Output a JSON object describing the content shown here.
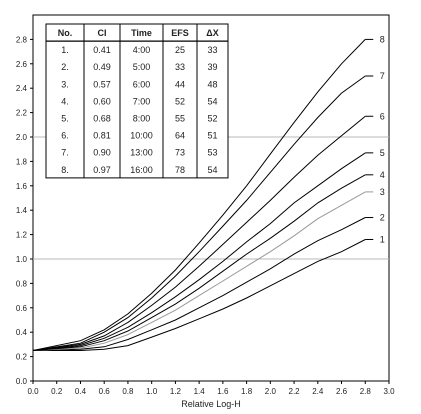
{
  "chart_data": {
    "type": "line",
    "xlabel": "Relative Log-H",
    "ylabel": "",
    "xlim": [
      0.0,
      3.0
    ],
    "ylim": [
      0.0,
      3.0
    ],
    "x_ticks": [
      "0.0",
      "0.2",
      "0.4",
      "0.6",
      "0.8",
      "1.0",
      "1.2",
      "1.4",
      "1.6",
      "1.8",
      "2.0",
      "2.2",
      "2.4",
      "2.6",
      "2.8",
      "3.0"
    ],
    "y_ticks": [
      "0.0",
      "0.2",
      "0.4",
      "0.6",
      "0.8",
      "1.0",
      "1.2",
      "1.4",
      "1.6",
      "1.8",
      "2.0",
      "2.2",
      "2.4",
      "2.6",
      "2.8"
    ],
    "reference_lines_y": [
      1.0,
      2.0
    ],
    "grid": false,
    "series": [
      {
        "name": "1",
        "color": "#000000",
        "x": [
          0.0,
          0.4,
          0.6,
          0.8,
          1.0,
          1.2,
          1.4,
          1.6,
          1.8,
          2.0,
          2.2,
          2.4,
          2.6,
          2.8
        ],
        "values": [
          0.25,
          0.25,
          0.26,
          0.29,
          0.36,
          0.43,
          0.51,
          0.59,
          0.68,
          0.78,
          0.88,
          0.98,
          1.06,
          1.16
        ]
      },
      {
        "name": "2",
        "color": "#000000",
        "x": [
          0.0,
          0.4,
          0.6,
          0.8,
          1.0,
          1.2,
          1.4,
          1.6,
          1.8,
          2.0,
          2.2,
          2.4,
          2.6,
          2.8
        ],
        "values": [
          0.25,
          0.26,
          0.28,
          0.34,
          0.42,
          0.5,
          0.6,
          0.7,
          0.81,
          0.92,
          1.04,
          1.15,
          1.24,
          1.34
        ]
      },
      {
        "name": "3",
        "color": "#999999",
        "x": [
          0.0,
          0.4,
          0.6,
          0.8,
          1.0,
          1.2,
          1.4,
          1.6,
          1.8,
          2.0,
          2.2,
          2.4,
          2.6,
          2.8
        ],
        "values": [
          0.25,
          0.27,
          0.31,
          0.38,
          0.48,
          0.58,
          0.7,
          0.82,
          0.94,
          1.06,
          1.19,
          1.33,
          1.44,
          1.55
        ]
      },
      {
        "name": "4",
        "color": "#000000",
        "x": [
          0.0,
          0.4,
          0.6,
          0.8,
          1.0,
          1.2,
          1.4,
          1.6,
          1.8,
          2.0,
          2.2,
          2.4,
          2.6,
          2.8
        ],
        "values": [
          0.25,
          0.28,
          0.33,
          0.41,
          0.52,
          0.63,
          0.76,
          0.9,
          1.04,
          1.17,
          1.31,
          1.46,
          1.58,
          1.69
        ]
      },
      {
        "name": "5",
        "color": "#000000",
        "x": [
          0.0,
          0.4,
          0.6,
          0.8,
          1.0,
          1.2,
          1.4,
          1.6,
          1.8,
          2.0,
          2.2,
          2.4,
          2.6,
          2.8
        ],
        "values": [
          0.25,
          0.29,
          0.35,
          0.44,
          0.56,
          0.69,
          0.83,
          0.98,
          1.14,
          1.29,
          1.46,
          1.6,
          1.74,
          1.87
        ]
      },
      {
        "name": "6",
        "color": "#000000",
        "x": [
          0.0,
          0.4,
          0.6,
          0.8,
          1.0,
          1.2,
          1.4,
          1.6,
          1.8,
          2.0,
          2.2,
          2.4,
          2.6,
          2.8
        ],
        "values": [
          0.25,
          0.3,
          0.37,
          0.48,
          0.62,
          0.77,
          0.94,
          1.12,
          1.3,
          1.48,
          1.67,
          1.85,
          2.01,
          2.17
        ]
      },
      {
        "name": "7",
        "color": "#000000",
        "x": [
          0.0,
          0.4,
          0.6,
          0.8,
          1.0,
          1.2,
          1.4,
          1.6,
          1.8,
          2.0,
          2.2,
          2.4,
          2.6,
          2.8
        ],
        "values": [
          0.25,
          0.31,
          0.4,
          0.52,
          0.68,
          0.86,
          1.06,
          1.27,
          1.48,
          1.71,
          1.94,
          2.16,
          2.36,
          2.5
        ]
      },
      {
        "name": "8",
        "color": "#000000",
        "x": [
          0.0,
          0.4,
          0.6,
          0.8,
          1.0,
          1.2,
          1.4,
          1.6,
          1.8,
          2.0,
          2.2,
          2.4,
          2.6,
          2.8
        ],
        "values": [
          0.25,
          0.33,
          0.42,
          0.55,
          0.72,
          0.91,
          1.13,
          1.36,
          1.6,
          1.86,
          2.12,
          2.37,
          2.6,
          2.8
        ]
      }
    ],
    "table": {
      "headers": [
        "No.",
        "CI",
        "Time",
        "EFS",
        "ΔX"
      ],
      "rows": [
        [
          "1.",
          "0.41",
          "4:00",
          "25",
          "33"
        ],
        [
          "2.",
          "0.49",
          "5:00",
          "33",
          "39"
        ],
        [
          "3.",
          "0.57",
          "6:00",
          "44",
          "48"
        ],
        [
          "4.",
          "0.60",
          "7:00",
          "52",
          "54"
        ],
        [
          "5.",
          "0.68",
          "8:00",
          "55",
          "52"
        ],
        [
          "6.",
          "0.81",
          "10:00",
          "64",
          "51"
        ],
        [
          "7.",
          "0.90",
          "13:00",
          "73",
          "53"
        ],
        [
          "8.",
          "0.97",
          "16:00",
          "78",
          "54"
        ]
      ]
    }
  }
}
